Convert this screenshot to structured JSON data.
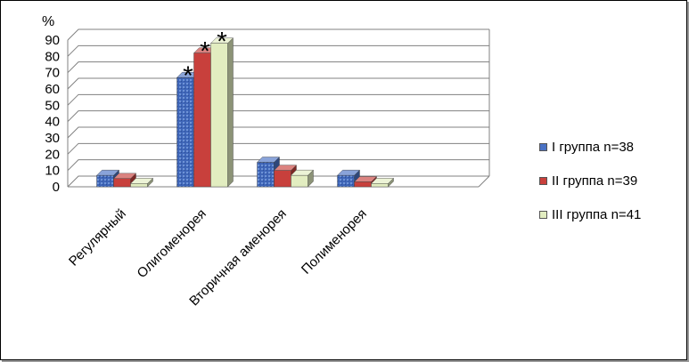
{
  "chart_data": {
    "type": "bar",
    "ylabel": "%",
    "ylim": [
      0,
      90
    ],
    "yticks": [
      "0",
      "10",
      "20",
      "30",
      "40",
      "50",
      "60",
      "70",
      "80",
      "90"
    ],
    "categories": [
      "Регулярный",
      "Олигоменорея",
      "Вторичная аменорея",
      "Полименорея"
    ],
    "series": [
      {
        "name": "I группа n=38",
        "color": "#4a72c4",
        "values": [
          7,
          67,
          15,
          7
        ]
      },
      {
        "name": "II группа n=39",
        "color": "#c8403c",
        "values": [
          5,
          82,
          10,
          3
        ]
      },
      {
        "name": "III группа n=41",
        "color": "#e2edc0",
        "values": [
          2,
          88,
          7,
          2
        ]
      }
    ],
    "annotations": [
      "*",
      "*",
      "*"
    ],
    "grid": true,
    "legend_position": "right"
  }
}
